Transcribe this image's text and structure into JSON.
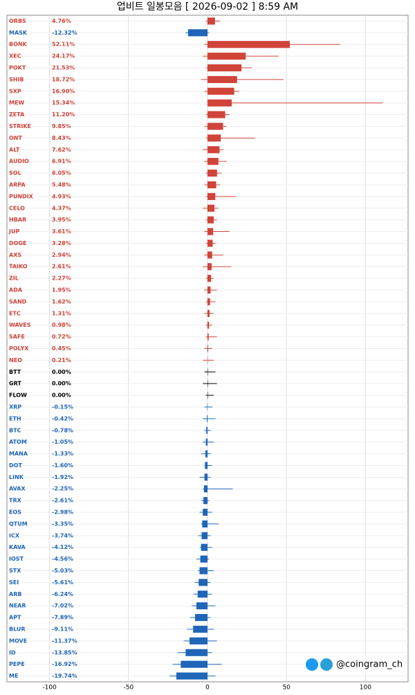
{
  "chart_data": {
    "type": "candle-bar",
    "title": "업비트 일봉모음 [ 2026-09-02 ]  8:59 AM",
    "watermark": "@coingram_ch",
    "categories": [
      "ORBS",
      "MASK",
      "BONK",
      "XEC",
      "POKT",
      "SHIB",
      "SXP",
      "MEW",
      "ZETA",
      "STRIKE",
      "ONT",
      "ALT",
      "AUDIO",
      "SOL",
      "ARPA",
      "PUNDIX",
      "CELO",
      "HBAR",
      "JUP",
      "DOGE",
      "AXS",
      "TAIKO",
      "ZIL",
      "ADA",
      "SAND",
      "ETC",
      "WAVES",
      "SAFE",
      "POLYX",
      "NEO",
      "BTT",
      "GRT",
      "FLOW",
      "XRP",
      "ETH",
      "BTC",
      "ATOM",
      "MANA",
      "DOT",
      "LINK",
      "AVAX",
      "TRX",
      "EOS",
      "QTUM",
      "ICX",
      "KAVA",
      "IOST",
      "STX",
      "SEI",
      "ARB",
      "NEAR",
      "APT",
      "BLUR",
      "MOVE",
      "ID",
      "PEPE",
      "ME"
    ],
    "values": [
      4.76,
      -12.32,
      52.11,
      24.17,
      21.53,
      18.72,
      16.9,
      15.34,
      11.2,
      9.85,
      8.43,
      7.62,
      6.91,
      6.05,
      5.48,
      4.93,
      4.37,
      3.95,
      3.61,
      3.28,
      2.94,
      2.61,
      2.27,
      1.95,
      1.62,
      1.31,
      0.98,
      0.72,
      0.45,
      0.21,
      0,
      0,
      0,
      -0.15,
      -0.42,
      -0.78,
      -1.05,
      -1.33,
      -1.6,
      -1.92,
      -2.25,
      -2.61,
      -2.98,
      -3.35,
      -3.74,
      -4.12,
      -4.56,
      -5.03,
      -5.61,
      -6.24,
      -7.02,
      -7.89,
      -9.11,
      -11.37,
      -13.85,
      -16.92,
      -19.74
    ],
    "value_labels": [
      "4.76%",
      "-12.32%",
      "52.11%",
      "24.17%",
      "21.53%",
      "18.72%",
      "16.90%",
      "15.34%",
      "11.20%",
      "9.85%",
      "8.43%",
      "7.62%",
      "6.91%",
      "6.05%",
      "5.48%",
      "4.93%",
      "4.37%",
      "3.95%",
      "3.61%",
      "3.28%",
      "2.94%",
      "2.61%",
      "2.27%",
      "1.95%",
      "1.62%",
      "1.31%",
      "0.98%",
      "0.72%",
      "0.45%",
      "0.21%",
      "0.00%",
      "0.00%",
      "0.00%",
      "-0.15%",
      "-0.42%",
      "-0.78%",
      "-1.05%",
      "-1.33%",
      "-1.60%",
      "-1.92%",
      "-2.25%",
      "-2.61%",
      "-2.98%",
      "-3.35%",
      "-3.74%",
      "-4.12%",
      "-4.56%",
      "-5.03%",
      "-5.61%",
      "-6.24%",
      "-7.02%",
      "-7.89%",
      "-9.11%",
      "-11.37%",
      "-13.85%",
      "-16.92%",
      "-19.74%"
    ],
    "low": [
      -1,
      -14,
      -2,
      -3,
      -1,
      -4,
      -2,
      0,
      -1,
      -2,
      -1,
      -3,
      -2,
      -1,
      -2,
      -1,
      -3,
      -1,
      -2,
      -1,
      -2,
      -3,
      -1,
      -2,
      -1,
      -2,
      -1,
      -1,
      -2,
      -3,
      -2,
      -3,
      -1,
      -2,
      -3,
      -2,
      -3,
      -4,
      -2,
      -5,
      -3,
      -4,
      -5,
      -4,
      -6,
      -5,
      -7,
      -6,
      -8,
      -9,
      -10,
      -11,
      -13,
      -15,
      -19,
      -22,
      -24
    ],
    "high": [
      8,
      1,
      84,
      45,
      28,
      48,
      20,
      111,
      14,
      12,
      30,
      10,
      12,
      9,
      8,
      18,
      7,
      6,
      14,
      5,
      10,
      15,
      4,
      6,
      5,
      4,
      3,
      6,
      3,
      4,
      5,
      6,
      4,
      3,
      5,
      2,
      4,
      2,
      3,
      2,
      16,
      1,
      3,
      7,
      2,
      3,
      1,
      4,
      2,
      3,
      5,
      2,
      4,
      6,
      3,
      9,
      5
    ],
    "up_color": "#d0443a",
    "down_color": "#1f66b8",
    "flat_color": "#000000",
    "xlim": [
      -127,
      127
    ],
    "xticks": [
      -100,
      -50,
      0,
      50,
      100
    ],
    "grid": true
  }
}
